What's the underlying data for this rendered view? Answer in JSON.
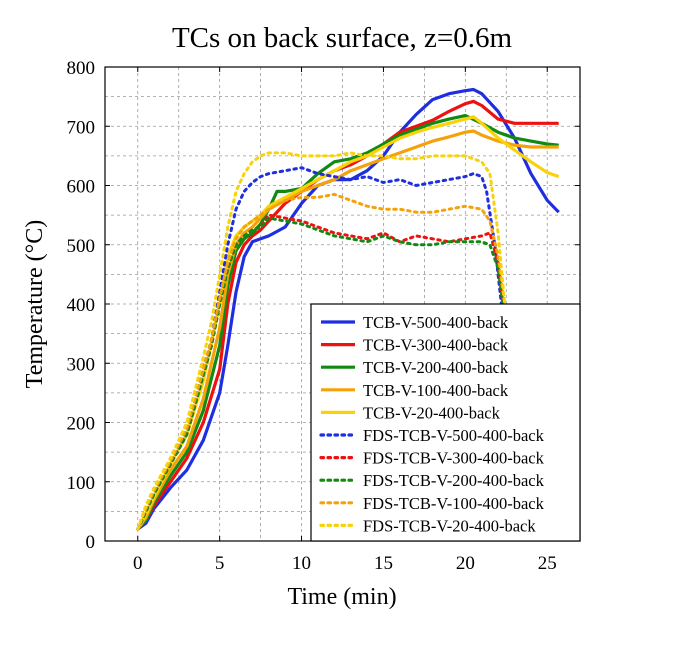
{
  "chart_data": {
    "type": "line",
    "title": "TCs on back surface, z=0.6m",
    "xlabel": "Time (min)",
    "ylabel": "Temperature (°C)",
    "xlim": [
      -2,
      27
    ],
    "ylim": [
      0,
      800
    ],
    "xticks": [
      0,
      5,
      10,
      15,
      20,
      25
    ],
    "yticks": [
      0,
      100,
      200,
      300,
      400,
      500,
      600,
      700,
      800
    ],
    "grid": true,
    "legend_position": "bottom-right",
    "series": [
      {
        "name": "TCB-V-500-400-back",
        "color": "#1f2fe0",
        "style": "solid",
        "x": [
          0,
          0.5,
          1,
          2,
          3,
          4,
          5,
          5.5,
          6,
          6.5,
          7,
          7.5,
          8,
          9,
          10,
          11,
          12,
          13,
          14,
          15,
          16,
          17,
          18,
          19,
          20,
          20.5,
          21,
          22,
          23,
          24,
          25,
          25.7
        ],
        "y": [
          20,
          30,
          55,
          90,
          120,
          170,
          250,
          330,
          420,
          480,
          505,
          510,
          515,
          530,
          570,
          600,
          610,
          610,
          625,
          650,
          690,
          720,
          745,
          755,
          760,
          762,
          755,
          725,
          680,
          620,
          575,
          555
        ]
      },
      {
        "name": "TCB-V-300-400-back",
        "color": "#ee1111",
        "style": "solid",
        "x": [
          0,
          0.5,
          1,
          2,
          3,
          4,
          5,
          5.5,
          6,
          6.5,
          7,
          7.5,
          8,
          9,
          10,
          11,
          12,
          13,
          14,
          15,
          16,
          17,
          18,
          19,
          20,
          20.5,
          21,
          22,
          23,
          24,
          25,
          25.7
        ],
        "y": [
          20,
          35,
          60,
          100,
          140,
          200,
          290,
          400,
          470,
          500,
          515,
          525,
          540,
          570,
          590,
          610,
          625,
          635,
          650,
          670,
          690,
          700,
          710,
          725,
          738,
          742,
          735,
          712,
          705,
          705,
          705,
          705
        ]
      },
      {
        "name": "TCB-V-200-400-back",
        "color": "#128a12",
        "style": "solid",
        "x": [
          0,
          0.5,
          1,
          2,
          3,
          4,
          5,
          5.5,
          6,
          6.5,
          7,
          7.5,
          8,
          8.5,
          9,
          10,
          11,
          12,
          13,
          14,
          15,
          16,
          17,
          18,
          19,
          20,
          21,
          22,
          23,
          24,
          25,
          25.7
        ],
        "y": [
          20,
          35,
          65,
          110,
          150,
          220,
          330,
          430,
          490,
          510,
          520,
          535,
          560,
          590,
          590,
          595,
          620,
          640,
          645,
          655,
          670,
          685,
          695,
          705,
          712,
          718,
          705,
          690,
          680,
          675,
          670,
          668
        ]
      },
      {
        "name": "TCB-V-100-400-back",
        "color": "#f5a20a",
        "style": "solid",
        "x": [
          0,
          0.5,
          1,
          2,
          3,
          4,
          5,
          5.5,
          6,
          6.5,
          7,
          7.5,
          8,
          9,
          10,
          11,
          12,
          13,
          14,
          15,
          16,
          17,
          18,
          19,
          20,
          20.5,
          21,
          22,
          23,
          24,
          25,
          25.7
        ],
        "y": [
          20,
          40,
          70,
          120,
          160,
          240,
          360,
          450,
          500,
          520,
          530,
          545,
          560,
          575,
          590,
          600,
          610,
          625,
          635,
          645,
          655,
          665,
          675,
          682,
          690,
          692,
          685,
          675,
          668,
          665,
          665,
          665
        ]
      },
      {
        "name": "TCB-V-20-400-back",
        "color": "#f8d30a",
        "style": "solid",
        "x": [
          0,
          0.5,
          1,
          2,
          3,
          4,
          5,
          5.5,
          6,
          6.5,
          7,
          7.5,
          8,
          9,
          10,
          11,
          12,
          13,
          14,
          15,
          16,
          17,
          18,
          19,
          20,
          20.5,
          21,
          22,
          23,
          24,
          25,
          25.7
        ],
        "y": [
          20,
          45,
          75,
          130,
          180,
          270,
          400,
          480,
          515,
          530,
          540,
          550,
          565,
          580,
          595,
          610,
          625,
          640,
          650,
          665,
          680,
          690,
          698,
          705,
          712,
          716,
          705,
          680,
          660,
          640,
          622,
          615
        ]
      },
      {
        "name": "FDS-TCB-V-500-400-back",
        "color": "#1f2fe0",
        "style": "dotted",
        "x": [
          0,
          0.5,
          1,
          2,
          3,
          4,
          4.5,
          5,
          5.5,
          6,
          6.5,
          7,
          7.5,
          8,
          9,
          10,
          11,
          12,
          13,
          14,
          15,
          16,
          17,
          18,
          19,
          20,
          20.5,
          21,
          21.3,
          21.8,
          22.2
        ],
        "y": [
          20,
          50,
          80,
          130,
          190,
          290,
          340,
          420,
          500,
          560,
          590,
          605,
          615,
          620,
          625,
          630,
          620,
          615,
          610,
          615,
          605,
          610,
          600,
          605,
          610,
          615,
          620,
          615,
          590,
          500,
          400
        ]
      },
      {
        "name": "FDS-TCB-V-300-400-back",
        "color": "#ee1111",
        "style": "dotted",
        "x": [
          0,
          0.5,
          1,
          2,
          3,
          4,
          4.5,
          5,
          5.5,
          6,
          6.5,
          7,
          7.5,
          8,
          9,
          10,
          11,
          12,
          13,
          14,
          15,
          16,
          17,
          18,
          19,
          20,
          21,
          21.5,
          22,
          22.3
        ],
        "y": [
          20,
          50,
          80,
          130,
          180,
          280,
          330,
          400,
          460,
          500,
          515,
          525,
          530,
          550,
          545,
          540,
          530,
          520,
          515,
          510,
          520,
          505,
          515,
          510,
          505,
          510,
          515,
          520,
          470,
          400
        ]
      },
      {
        "name": "FDS-TCB-V-200-400-back",
        "color": "#128a12",
        "style": "dotted",
        "x": [
          0,
          0.5,
          1,
          2,
          3,
          4,
          4.5,
          5,
          5.5,
          6,
          6.5,
          7,
          7.5,
          8,
          9,
          10,
          11,
          12,
          13,
          14,
          15,
          16,
          17,
          18,
          19,
          20,
          21,
          21.5,
          22,
          22.3
        ],
        "y": [
          20,
          50,
          80,
          130,
          180,
          280,
          330,
          400,
          460,
          500,
          515,
          525,
          530,
          545,
          540,
          535,
          525,
          515,
          510,
          505,
          515,
          505,
          500,
          500,
          505,
          505,
          505,
          500,
          460,
          400
        ]
      },
      {
        "name": "FDS-TCB-V-100-400-back",
        "color": "#f5a20a",
        "style": "dotted",
        "x": [
          0,
          0.5,
          1,
          2,
          3,
          4,
          4.5,
          5,
          5.5,
          6,
          6.5,
          7,
          7.5,
          8,
          9,
          10,
          11,
          12,
          13,
          14,
          15,
          16,
          17,
          18,
          19,
          20,
          21,
          21.5,
          22,
          22.4
        ],
        "y": [
          20,
          55,
          85,
          135,
          190,
          290,
          340,
          410,
          470,
          510,
          530,
          540,
          550,
          560,
          575,
          580,
          580,
          585,
          575,
          565,
          560,
          560,
          555,
          555,
          560,
          565,
          560,
          540,
          480,
          400
        ]
      },
      {
        "name": "FDS-TCB-V-20-400-back",
        "color": "#f8d30a",
        "style": "dotted",
        "x": [
          0,
          0.5,
          1,
          2,
          3,
          4,
          4.5,
          5,
          5.5,
          6,
          6.5,
          7,
          7.5,
          8,
          9,
          10,
          11,
          12,
          13,
          14,
          15,
          16,
          17,
          18,
          19,
          20,
          21,
          21.5,
          22,
          22.4
        ],
        "y": [
          20,
          60,
          90,
          140,
          200,
          310,
          370,
          450,
          530,
          590,
          620,
          640,
          650,
          655,
          655,
          650,
          650,
          650,
          655,
          650,
          650,
          645,
          645,
          650,
          650,
          650,
          640,
          620,
          520,
          400
        ]
      }
    ]
  }
}
